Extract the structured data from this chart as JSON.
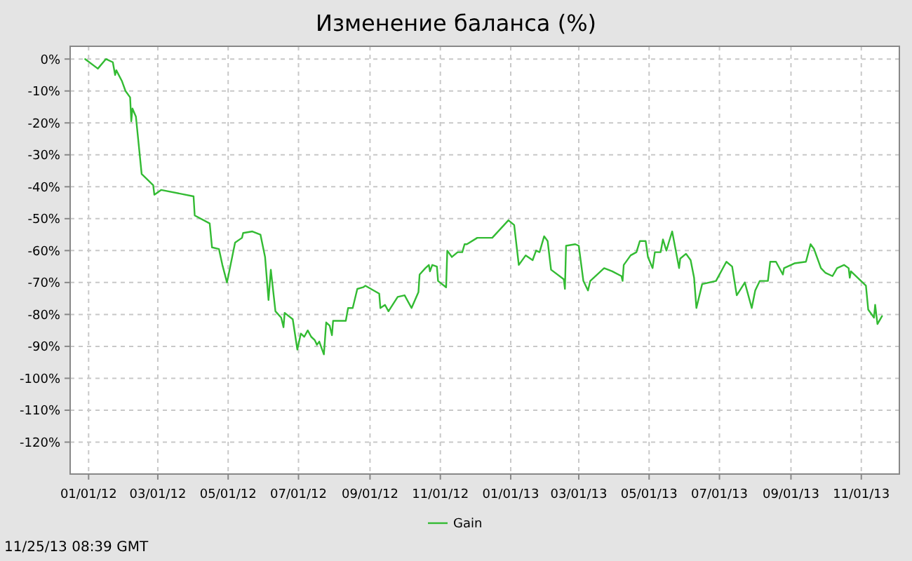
{
  "chart_data": {
    "type": "line",
    "title": "Изменение баланса (%)",
    "annotations": [
      "11/25/13 08:39 GMT"
    ],
    "xlim": [
      "2011-12-16",
      "2013-12-04"
    ],
    "ylim": [
      -130,
      4
    ],
    "xticks": [
      {
        "value": "2012-01-01",
        "label": "01/01/12"
      },
      {
        "value": "2012-03-01",
        "label": "03/01/12"
      },
      {
        "value": "2012-05-01",
        "label": "05/01/12"
      },
      {
        "value": "2012-07-01",
        "label": "07/01/12"
      },
      {
        "value": "2012-09-01",
        "label": "09/01/12"
      },
      {
        "value": "2012-11-01",
        "label": "11/01/12"
      },
      {
        "value": "2013-01-01",
        "label": "01/01/13"
      },
      {
        "value": "2013-03-01",
        "label": "03/01/13"
      },
      {
        "value": "2013-05-01",
        "label": "05/01/13"
      },
      {
        "value": "2013-07-01",
        "label": "07/01/13"
      },
      {
        "value": "2013-09-01",
        "label": "09/01/13"
      },
      {
        "value": "2013-11-01",
        "label": "11/01/13"
      }
    ],
    "yticks": [
      {
        "value": 0,
        "label": "0%"
      },
      {
        "value": -10,
        "label": "-10%"
      },
      {
        "value": -20,
        "label": "-20%"
      },
      {
        "value": -30,
        "label": "-30%"
      },
      {
        "value": -40,
        "label": "-40%"
      },
      {
        "value": -50,
        "label": "-50%"
      },
      {
        "value": -60,
        "label": "-60%"
      },
      {
        "value": -70,
        "label": "-70%"
      },
      {
        "value": -80,
        "label": "-80%"
      },
      {
        "value": -90,
        "label": "-90%"
      },
      {
        "value": -100,
        "label": "-100%"
      },
      {
        "value": -110,
        "label": "-110%"
      },
      {
        "value": -120,
        "label": "-120%"
      }
    ],
    "grid": true,
    "legend": "bottom",
    "marker": "none",
    "line_style": "solid",
    "series": [
      {
        "name": "Gain",
        "color": "#33bb33",
        "x": [
          "2011-12-29",
          "2012-01-09",
          "2012-01-16",
          "2012-01-22",
          "2012-01-24",
          "2012-01-25",
          "2012-01-30",
          "2012-02-02",
          "2012-02-06",
          "2012-02-07",
          "2012-02-08",
          "2012-02-11",
          "2012-02-16",
          "2012-02-26",
          "2012-02-27",
          "2012-03-04",
          "2012-04-01",
          "2012-04-02",
          "2012-04-15",
          "2012-04-17",
          "2012-04-23",
          "2012-04-26",
          "2012-04-30",
          "2012-05-07",
          "2012-05-13",
          "2012-05-14",
          "2012-05-22",
          "2012-05-29",
          "2012-06-02",
          "2012-06-05",
          "2012-06-07",
          "2012-06-11",
          "2012-06-16",
          "2012-06-18",
          "2012-06-19",
          "2012-06-26",
          "2012-06-30",
          "2012-07-03",
          "2012-07-06",
          "2012-07-09",
          "2012-07-12",
          "2012-07-15",
          "2012-07-17",
          "2012-07-19",
          "2012-07-23",
          "2012-07-25",
          "2012-07-28",
          "2012-07-30",
          "2012-07-31",
          "2012-08-11",
          "2012-08-13",
          "2012-08-17",
          "2012-08-21",
          "2012-08-26",
          "2012-08-28",
          "2012-09-09",
          "2012-09-10",
          "2012-09-14",
          "2012-09-17",
          "2012-09-25",
          "2012-10-01",
          "2012-10-07",
          "2012-10-13",
          "2012-10-14",
          "2012-10-19",
          "2012-10-22",
          "2012-10-23",
          "2012-10-25",
          "2012-10-29",
          "2012-10-30",
          "2012-11-06",
          "2012-11-07",
          "2012-11-11",
          "2012-11-16",
          "2012-11-20",
          "2012-11-22",
          "2012-11-24",
          "2012-12-03",
          "2012-12-16",
          "2012-12-30",
          "2013-01-04",
          "2013-01-08",
          "2013-01-14",
          "2013-01-20",
          "2013-01-23",
          "2013-01-26",
          "2013-01-30",
          "2013-02-02",
          "2013-02-05",
          "2013-02-16",
          "2013-02-17",
          "2013-02-18",
          "2013-02-26",
          "2013-03-01",
          "2013-03-05",
          "2013-03-09",
          "2013-03-11",
          "2013-03-23",
          "2013-03-30",
          "2013-04-07",
          "2013-04-08",
          "2013-04-09",
          "2013-04-15",
          "2013-04-20",
          "2013-04-23",
          "2013-04-28",
          "2013-04-30",
          "2013-05-04",
          "2013-05-06",
          "2013-05-11",
          "2013-05-13",
          "2013-05-16",
          "2013-05-18",
          "2013-05-21",
          "2013-05-27",
          "2013-05-28",
          "2013-06-02",
          "2013-06-06",
          "2013-06-09",
          "2013-06-11",
          "2013-06-16",
          "2013-06-28",
          "2013-07-07",
          "2013-07-12",
          "2013-07-16",
          "2013-07-23",
          "2013-07-29",
          "2013-08-01",
          "2013-08-05",
          "2013-08-12",
          "2013-08-14",
          "2013-08-19",
          "2013-08-25",
          "2013-08-26",
          "2013-09-04",
          "2013-09-14",
          "2013-09-18",
          "2013-09-21",
          "2013-09-27",
          "2013-10-01",
          "2013-10-07",
          "2013-10-11",
          "2013-10-17",
          "2013-10-21",
          "2013-10-22",
          "2013-10-23",
          "2013-11-05",
          "2013-11-07",
          "2013-11-12",
          "2013-11-13",
          "2013-11-15",
          "2013-11-19"
        ],
        "values": [
          0,
          -3,
          0,
          -1,
          -5,
          -3.5,
          -7,
          -10,
          -12,
          -19.5,
          -15.5,
          -18,
          -36,
          -39.5,
          -42.5,
          -41,
          -43,
          -49,
          -51.5,
          -59,
          -59.5,
          -64.5,
          -70,
          -57.5,
          -56,
          -54.5,
          -54,
          -55,
          -62,
          -75.5,
          -66,
          -79,
          -81,
          -84,
          -79.5,
          -81.5,
          -91,
          -86,
          -87,
          -85,
          -87,
          -88,
          -89.5,
          -88.5,
          -92.5,
          -82.5,
          -83.5,
          -86.5,
          -82,
          -82,
          -78,
          -78,
          -72,
          -71.5,
          -71,
          -73.5,
          -78,
          -77,
          -79,
          -74.5,
          -74,
          -78,
          -73,
          -67.5,
          -65.5,
          -64.5,
          -66.5,
          -64.5,
          -65,
          -69.5,
          -71.5,
          -60,
          -62,
          -60.5,
          -60.5,
          -58,
          -58,
          -56,
          -56,
          -50.5,
          -52,
          -64.5,
          -61.5,
          -63,
          -60,
          -60.5,
          -55.5,
          -57,
          -66,
          -69,
          -72,
          -58.5,
          -58,
          -58.5,
          -69.5,
          -72.5,
          -69.5,
          -65.5,
          -66.5,
          -68,
          -69.5,
          -64.5,
          -61.5,
          -60.5,
          -57,
          -57,
          -62,
          -65.5,
          -60.5,
          -60.5,
          -56.5,
          -60,
          -57.5,
          -54,
          -65.5,
          -62.5,
          -61,
          -63,
          -68.5,
          -78,
          -70.5,
          -69.5,
          -63.5,
          -65,
          -74,
          -70,
          -78,
          -72.5,
          -69.5,
          -69.5,
          -63.5,
          -63.5,
          -67.5,
          -65.5,
          -64,
          -63.5,
          -58,
          -59.5,
          -65.5,
          -67,
          -68,
          -65.5,
          -64.5,
          -65.5,
          -68.5,
          -66.5,
          -71,
          -78.5,
          -81,
          -77,
          -83,
          -80.5
        ]
      }
    ]
  }
}
